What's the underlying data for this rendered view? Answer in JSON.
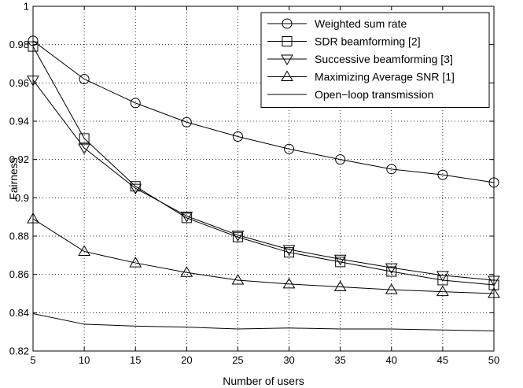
{
  "chart_data": {
    "type": "line",
    "title": "",
    "xlabel": "Number of users",
    "ylabel": "Fairness",
    "xlim": [
      5,
      50
    ],
    "ylim": [
      0.82,
      1.0
    ],
    "xticks": [
      5,
      10,
      15,
      20,
      25,
      30,
      35,
      40,
      45,
      50
    ],
    "yticks": [
      0.82,
      0.84,
      0.86,
      0.88,
      0.9,
      0.92,
      0.94,
      0.96,
      0.98,
      1.0
    ],
    "xtick_labels": [
      "5",
      "10",
      "15",
      "20",
      "25",
      "30",
      "35",
      "40",
      "45",
      "50"
    ],
    "ytick_labels": [
      "0.82",
      "0.84",
      "0.86",
      "0.88",
      "0.9",
      "0.92",
      "0.94",
      "0.96",
      "0.98",
      "1"
    ],
    "grid": true,
    "legend_position": "top-right",
    "x": [
      5,
      10,
      15,
      20,
      25,
      30,
      35,
      40,
      45,
      50
    ],
    "series": [
      {
        "name": "Weighted sum rate",
        "marker": "circle",
        "values": [
          0.982,
          0.962,
          0.9495,
          0.9395,
          0.932,
          0.9255,
          0.92,
          0.915,
          0.912,
          0.908
        ]
      },
      {
        "name": "SDR beamforming [2]",
        "marker": "square",
        "values": [
          0.979,
          0.931,
          0.906,
          0.8895,
          0.8795,
          0.8715,
          0.8665,
          0.8615,
          0.857,
          0.8545
        ]
      },
      {
        "name": "Successive beamforming [3]",
        "marker": "triangle-down",
        "values": [
          0.9615,
          0.926,
          0.905,
          0.8905,
          0.8805,
          0.873,
          0.868,
          0.8635,
          0.8595,
          0.857
        ]
      },
      {
        "name": "Maximizing Average SNR [1]",
        "marker": "triangle-up",
        "values": [
          0.889,
          0.872,
          0.866,
          0.861,
          0.857,
          0.855,
          0.8535,
          0.852,
          0.851,
          0.85
        ]
      },
      {
        "name": "Open−loop transmission",
        "marker": "none",
        "values": [
          0.8395,
          0.834,
          0.833,
          0.8325,
          0.8315,
          0.832,
          0.8315,
          0.8315,
          0.831,
          0.8305
        ]
      }
    ]
  }
}
